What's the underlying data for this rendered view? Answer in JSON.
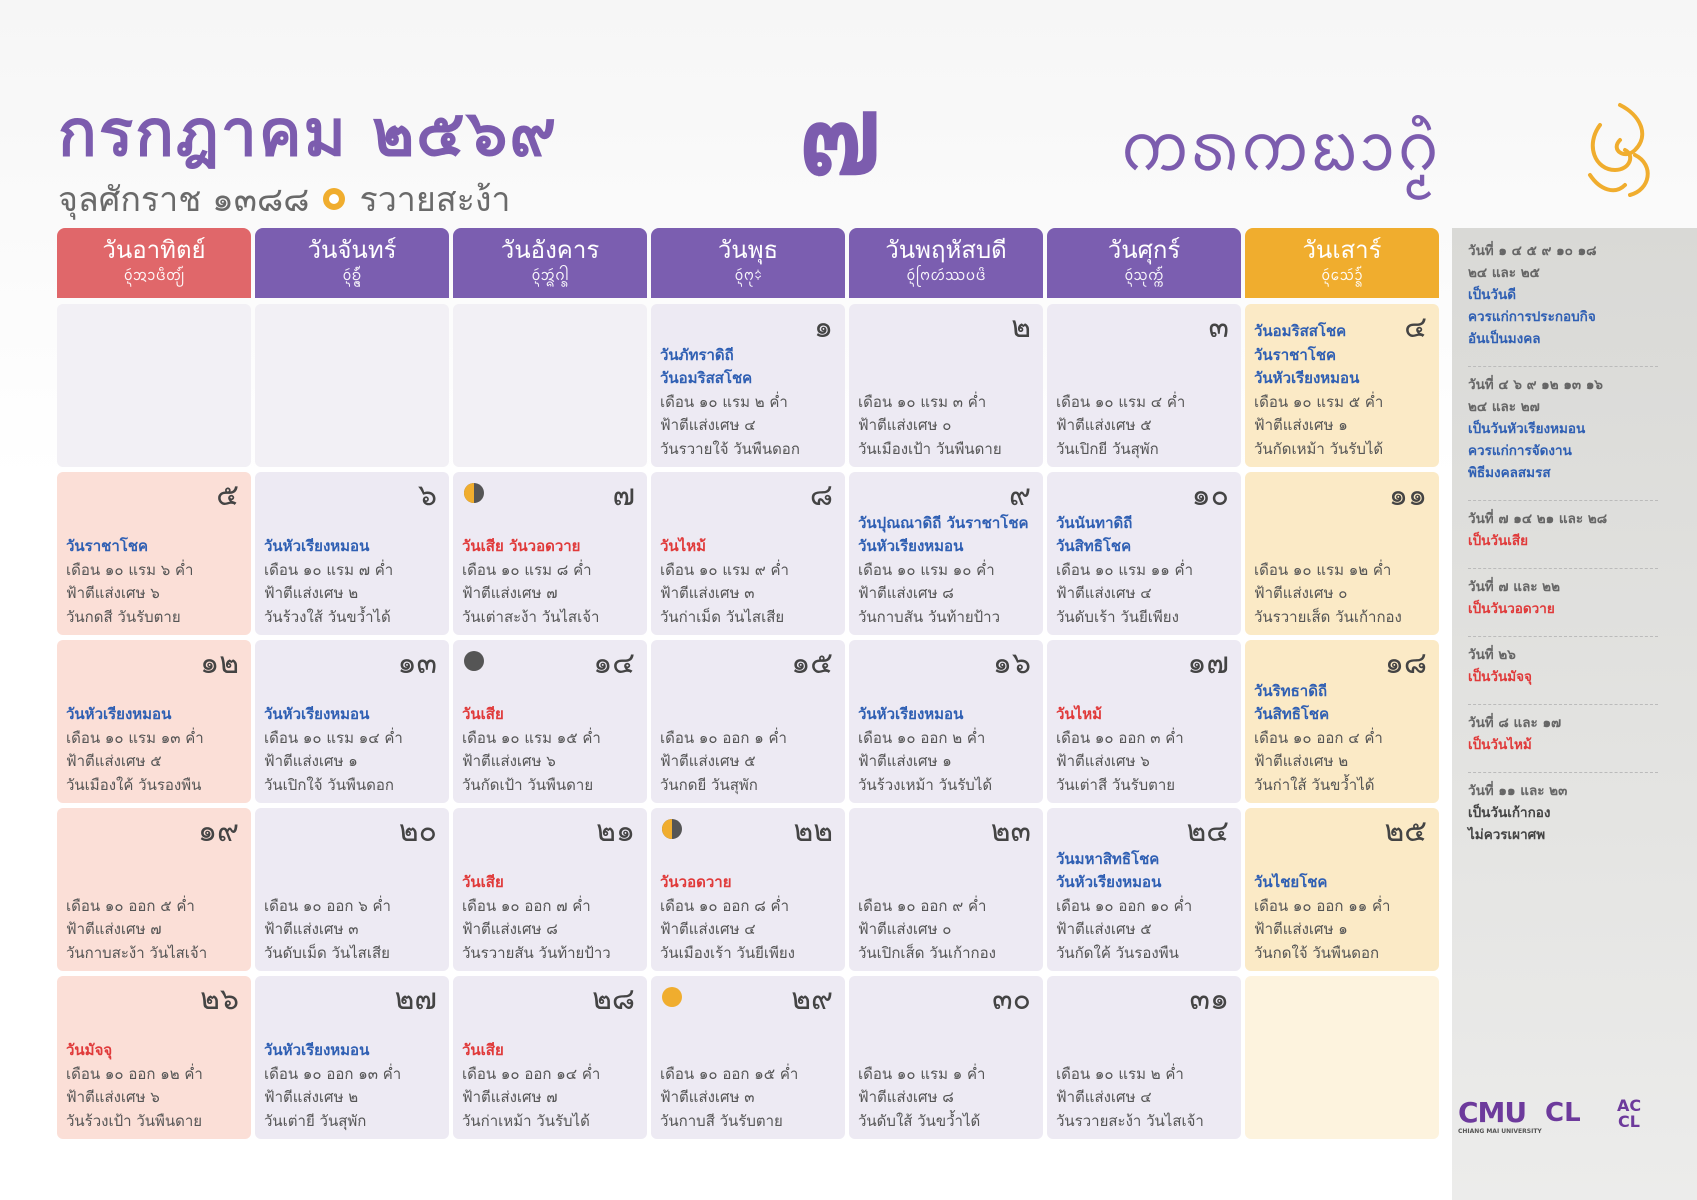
{
  "header": {
    "title": "กรกฎาคม ๒๕๖๙",
    "era": "จุลศักราช ๑๓๘๘",
    "year_name": "รวายสะง้า",
    "month_number": "๗",
    "lanna_title": "ᨠᩁᨠᨭᩣᨣᩫ᩠ᨾ"
  },
  "weekdays": [
    {
      "name": "วันอาทิตย์",
      "lanna": "ᩅᩢ᩠ᨶᩋᩣᨴᩥᨲ᩠ᨿ᩼",
      "color": "#e0676a"
    },
    {
      "name": "วันจันทร์",
      "lanna": "ᩅᩢ᩠ᨶᨧᩢ᩠ᨶ᩠ᨴ᩼",
      "color": "#7b5eb0"
    },
    {
      "name": "วันอังคาร",
      "lanna": "ᩅᩢ᩠ᨶᩋᩢ᩠ᨦᨣᩤ᩠ᩁ",
      "color": "#7b5eb0"
    },
    {
      "name": "วันพุธ",
      "lanna": "ᩅᩢ᩠ᨶᨻᩩ᨟",
      "color": "#7b5eb0"
    },
    {
      "name": "วันพฤหัสบดี",
      "lanna": "ᩅᩢ᩠ᨶᨻᩕᩉᩢᩔᨷᨴᩦ",
      "color": "#7b5eb0"
    },
    {
      "name": "วันศุกร์",
      "lanna": "ᩅᩢ᩠ᨶᩈᩩᨠ᩠ᨠ᩼",
      "color": "#7b5eb0"
    },
    {
      "name": "วันเสาร์",
      "lanna": "ᩅᩢ᩠ᨶᩈᩮᩢᩣ᩠ᩁ᩼",
      "color": "#f0ad2e"
    }
  ],
  "weeks": [
    [
      null,
      null,
      null,
      {
        "day": "๑",
        "events": [
          {
            "text": "วันภัทราดิถี",
            "color": "#2f5fb3"
          },
          {
            "text": "วันอมริสสโชค",
            "color": "#2f5fb3"
          }
        ],
        "lunar": "เดือน ๑๐ แรม ๒ ค่ำ",
        "remainder": "ฟ้าตีแส่งเศษ ๔",
        "names": "วันรวายใจ้ วันพืนดอก"
      },
      {
        "day": "๒",
        "events": [],
        "lunar": "เดือน ๑๐ แรม ๓ ค่ำ",
        "remainder": "ฟ้าตีแส่งเศษ ๐",
        "names": "วันเมืองเป้า วันพืนดาย"
      },
      {
        "day": "๓",
        "events": [],
        "lunar": "เดือน ๑๐ แรม ๔ ค่ำ",
        "remainder": "ฟ้าตีแส่งเศษ ๕",
        "names": "วันเปิกยี วันสุพัก"
      },
      {
        "day": "๔",
        "events": [
          {
            "text": "วันอมริสสโชค",
            "color": "#2f5fb3"
          },
          {
            "text": "วันราชาโชค",
            "color": "#2f5fb3"
          },
          {
            "text": "วันหัวเรียงหมอน",
            "color": "#2f5fb3"
          }
        ],
        "lunar": "เดือน ๑๐ แรม ๕ ค่ำ",
        "remainder": "ฟ้าตีแส่งเศษ ๑",
        "names": "วันกัดเหม้า วันรับได้"
      }
    ],
    [
      {
        "day": "๕",
        "events": [
          {
            "text": "วันราชาโชค",
            "color": "#2f5fb3"
          }
        ],
        "lunar": "เดือน ๑๐ แรม ๖ ค่ำ",
        "remainder": "ฟ้าตีแส่งเศษ ๖",
        "names": "วันกดสี วันรับตาย"
      },
      {
        "day": "๖",
        "events": [
          {
            "text": "วันหัวเรียงหมอน",
            "color": "#2f5fb3"
          }
        ],
        "lunar": "เดือน ๑๐ แรม ๗ ค่ำ",
        "remainder": "ฟ้าตีแส่งเศษ ๒",
        "names": "วันร้วงใส้ วันขว้ำได้"
      },
      {
        "day": "๗",
        "moon": "half",
        "events": [
          {
            "text": "วันเสีย  วันวอดวาย",
            "color": "#e03a3a"
          }
        ],
        "lunar": "เดือน ๑๐ แรม ๘ ค่ำ",
        "remainder": "ฟ้าตีแส่งเศษ ๗",
        "names": "วันเต่าสะง้า วันไสเจ้า"
      },
      {
        "day": "๘",
        "events": [
          {
            "text": "วันไหม้",
            "color": "#e03a3a"
          }
        ],
        "lunar": "เดือน ๑๐ แรม ๙ ค่ำ",
        "remainder": "ฟ้าตีแส่งเศษ ๓",
        "names": "วันก่าเม็ด วันไสเสีย"
      },
      {
        "day": "๙",
        "events": [
          {
            "text": "วันปุณณาดิถี  วันราชาโชค",
            "color": "#2f5fb3"
          },
          {
            "text": "วันหัวเรียงหมอน",
            "color": "#2f5fb3"
          }
        ],
        "lunar": "เดือน ๑๐ แรม ๑๐ ค่ำ",
        "remainder": "ฟ้าตีแส่งเศษ ๘",
        "names": "วันกาบสัน วันท้ายป้าว"
      },
      {
        "day": "๑๐",
        "events": [
          {
            "text": "วันนันทาดิถี",
            "color": "#2f5fb3"
          },
          {
            "text": "วันสิทธิโชค",
            "color": "#2f5fb3"
          }
        ],
        "lunar": "เดือน ๑๐ แรม ๑๑ ค่ำ",
        "remainder": "ฟ้าตีแส่งเศษ ๔",
        "names": "วันดับเร้า วันยีเพียง"
      },
      {
        "day": "๑๑",
        "events": [],
        "lunar": "เดือน ๑๐ แรม ๑๒ ค่ำ",
        "remainder": "ฟ้าตีแส่งเศษ ๐",
        "names": "วันรวายเส็ด วันเก้ากอง"
      }
    ],
    [
      {
        "day": "๑๒",
        "events": [
          {
            "text": "วันหัวเรียงหมอน",
            "color": "#2f5fb3"
          }
        ],
        "lunar": "เดือน ๑๐ แรม ๑๓ ค่ำ",
        "remainder": "ฟ้าตีแส่งเศษ ๕",
        "names": "วันเมืองใค้ วันรองพืน"
      },
      {
        "day": "๑๓",
        "events": [
          {
            "text": "วันหัวเรียงหมอน",
            "color": "#2f5fb3"
          }
        ],
        "lunar": "เดือน ๑๐ แรม ๑๔ ค่ำ",
        "remainder": "ฟ้าตีแส่งเศษ ๑",
        "names": "วันเปิกใจ้ วันพืนดอก"
      },
      {
        "day": "๑๔",
        "moon": "new",
        "events": [
          {
            "text": "วันเสีย",
            "color": "#e03a3a"
          }
        ],
        "lunar": "เดือน ๑๐ แรม ๑๕ ค่ำ",
        "remainder": "ฟ้าตีแส่งเศษ ๖",
        "names": "วันกัดเป้า วันพืนดาย"
      },
      {
        "day": "๑๕",
        "events": [],
        "lunar": "เดือน ๑๐ ออก ๑ ค่ำ",
        "remainder": "ฟ้าตีแส่งเศษ ๕",
        "names": "วันกดยี วันสุพัก"
      },
      {
        "day": "๑๖",
        "events": [
          {
            "text": "วันหัวเรียงหมอน",
            "color": "#2f5fb3"
          }
        ],
        "lunar": "เดือน ๑๐ ออก ๒ ค่ำ",
        "remainder": "ฟ้าตีแส่งเศษ ๑",
        "names": "วันร้วงเหม้า วันรับได้"
      },
      {
        "day": "๑๗",
        "events": [
          {
            "text": "วันไหม้",
            "color": "#e03a3a"
          }
        ],
        "lunar": "เดือน ๑๐ ออก ๓ ค่ำ",
        "remainder": "ฟ้าตีแส่งเศษ ๖",
        "names": "วันเต่าสี วันรับตาย"
      },
      {
        "day": "๑๘",
        "events": [
          {
            "text": "วันริทธาดิถี",
            "color": "#2f5fb3"
          },
          {
            "text": "วันสิทธิโชค",
            "color": "#2f5fb3"
          }
        ],
        "lunar": "เดือน ๑๐ ออก ๔ ค่ำ",
        "remainder": "ฟ้าตีแส่งเศษ ๒",
        "names": "วันก่าใส้ วันขว้ำได้"
      }
    ],
    [
      {
        "day": "๑๙",
        "events": [],
        "lunar": "เดือน ๑๐ ออก ๕ ค่ำ",
        "remainder": "ฟ้าตีแส่งเศษ ๗",
        "names": "วันกาบสะง้า วันไสเจ้า"
      },
      {
        "day": "๒๐",
        "events": [],
        "lunar": "เดือน ๑๐ ออก ๖ ค่ำ",
        "remainder": "ฟ้าตีแส่งเศษ ๓",
        "names": "วันดับเม็ด วันไสเสีย"
      },
      {
        "day": "๒๑",
        "events": [
          {
            "text": "วันเสีย",
            "color": "#e03a3a"
          }
        ],
        "lunar": "เดือน ๑๐ ออก ๗ ค่ำ",
        "remainder": "ฟ้าตีแส่งเศษ ๘",
        "names": "วันรวายสัน วันท้ายป้าว"
      },
      {
        "day": "๒๒",
        "moon": "half",
        "events": [
          {
            "text": "วันวอดวาย",
            "color": "#e03a3a"
          }
        ],
        "lunar": "เดือน ๑๐ ออก ๘ ค่ำ",
        "remainder": "ฟ้าตีแส่งเศษ ๔",
        "names": "วันเมืองเร้า วันยีเพียง"
      },
      {
        "day": "๒๓",
        "events": [],
        "lunar": "เดือน ๑๐ ออก ๙ ค่ำ",
        "remainder": "ฟ้าตีแส่งเศษ ๐",
        "names": "วันเปิกเส็ด วันเก้ากอง"
      },
      {
        "day": "๒๔",
        "events": [
          {
            "text": "วันมหาสิทธิโชค",
            "color": "#2f5fb3"
          },
          {
            "text": "วันหัวเรียงหมอน",
            "color": "#2f5fb3"
          }
        ],
        "lunar": "เดือน ๑๐ ออก ๑๐ ค่ำ",
        "remainder": "ฟ้าตีแส่งเศษ ๕",
        "names": "วันกัดใค้ วันรองพืน"
      },
      {
        "day": "๒๕",
        "events": [
          {
            "text": "วันไชยโชค",
            "color": "#2f5fb3"
          }
        ],
        "lunar": "เดือน ๑๐ ออก ๑๑ ค่ำ",
        "remainder": "ฟ้าตีแส่งเศษ ๑",
        "names": "วันกดใจ้ วันพืนดอก"
      }
    ],
    [
      {
        "day": "๒๖",
        "events": [
          {
            "text": "วันมัจจุ",
            "color": "#e03a3a"
          }
        ],
        "lunar": "เดือน ๑๐ ออก ๑๒ ค่ำ",
        "remainder": "ฟ้าตีแส่งเศษ ๖",
        "names": "วันร้วงเป้า วันพืนดาย"
      },
      {
        "day": "๒๗",
        "events": [
          {
            "text": "วันหัวเรียงหมอน",
            "color": "#2f5fb3"
          }
        ],
        "lunar": "เดือน ๑๐ ออก ๑๓ ค่ำ",
        "remainder": "ฟ้าตีแส่งเศษ ๒",
        "names": "วันเต่ายี วันสุพัก"
      },
      {
        "day": "๒๘",
        "events": [
          {
            "text": "วันเสีย",
            "color": "#e03a3a"
          }
        ],
        "lunar": "เดือน ๑๐ ออก ๑๔ ค่ำ",
        "remainder": "ฟ้าตีแส่งเศษ ๗",
        "names": "วันก่าเหม้า วันรับได้"
      },
      {
        "day": "๒๙",
        "moon": "full",
        "events": [],
        "lunar": "เดือน ๑๐ ออก ๑๕ ค่ำ",
        "remainder": "ฟ้าตีแส่งเศษ ๓",
        "names": "วันกาบสี วันรับตาย"
      },
      {
        "day": "๓๐",
        "events": [],
        "lunar": "เดือน ๑๐ แรม ๑ ค่ำ",
        "remainder": "ฟ้าตีแส่งเศษ ๘",
        "names": "วันดับใส้ วันขว้ำได้"
      },
      {
        "day": "๓๑",
        "events": [],
        "lunar": "เดือน ๑๐ แรม ๒ ค่ำ",
        "remainder": "ฟ้าตีแส่งเศษ ๔",
        "names": "วันรวายสะง้า วันไสเจ้า"
      },
      null
    ]
  ],
  "legend": [
    {
      "days": [
        "วันที่ ๑ ๔ ๕ ๙ ๑๐ ๑๘",
        "๒๔ และ ๒๕"
      ],
      "note": [
        "เป็นวันดี",
        "ควรแก่การประกอบกิจ",
        "อันเป็นมงคล"
      ],
      "color": "#2f5fb3"
    },
    {
      "days": [
        "วันที่ ๔ ๖ ๙ ๑๒ ๑๓ ๑๖",
        "๒๔ และ ๒๗"
      ],
      "note": [
        "เป็นวันหัวเรียงหมอน",
        "ควรแก่การจัดงาน",
        "พิธีมงคลสมรส"
      ],
      "color": "#2f5fb3"
    },
    {
      "days": [
        "วันที่ ๗ ๑๔ ๒๑ และ ๒๘"
      ],
      "note": [
        "เป็นวันเสีย"
      ],
      "color": "#e03a3a"
    },
    {
      "days": [
        "วันที่ ๗ และ ๒๒"
      ],
      "note": [
        "เป็นวันวอดวาย"
      ],
      "color": "#e03a3a"
    },
    {
      "days": [
        "วันที่ ๒๖"
      ],
      "note": [
        "เป็นวันมัจจุ"
      ],
      "color": "#e03a3a"
    },
    {
      "days": [
        "วันที่ ๘ และ ๑๗"
      ],
      "note": [
        "เป็นวันไหม้"
      ],
      "color": "#e03a3a"
    },
    {
      "days": [
        "วันที่ ๑๑ และ ๒๓"
      ],
      "note": [
        "เป็นวันเก้ากอง",
        "ไม่ควรเผาศพ"
      ],
      "color": "#444444"
    }
  ],
  "logos": [
    "CMU",
    "CHIANG MAI UNIVERSITY",
    "CL",
    "AC CL"
  ]
}
